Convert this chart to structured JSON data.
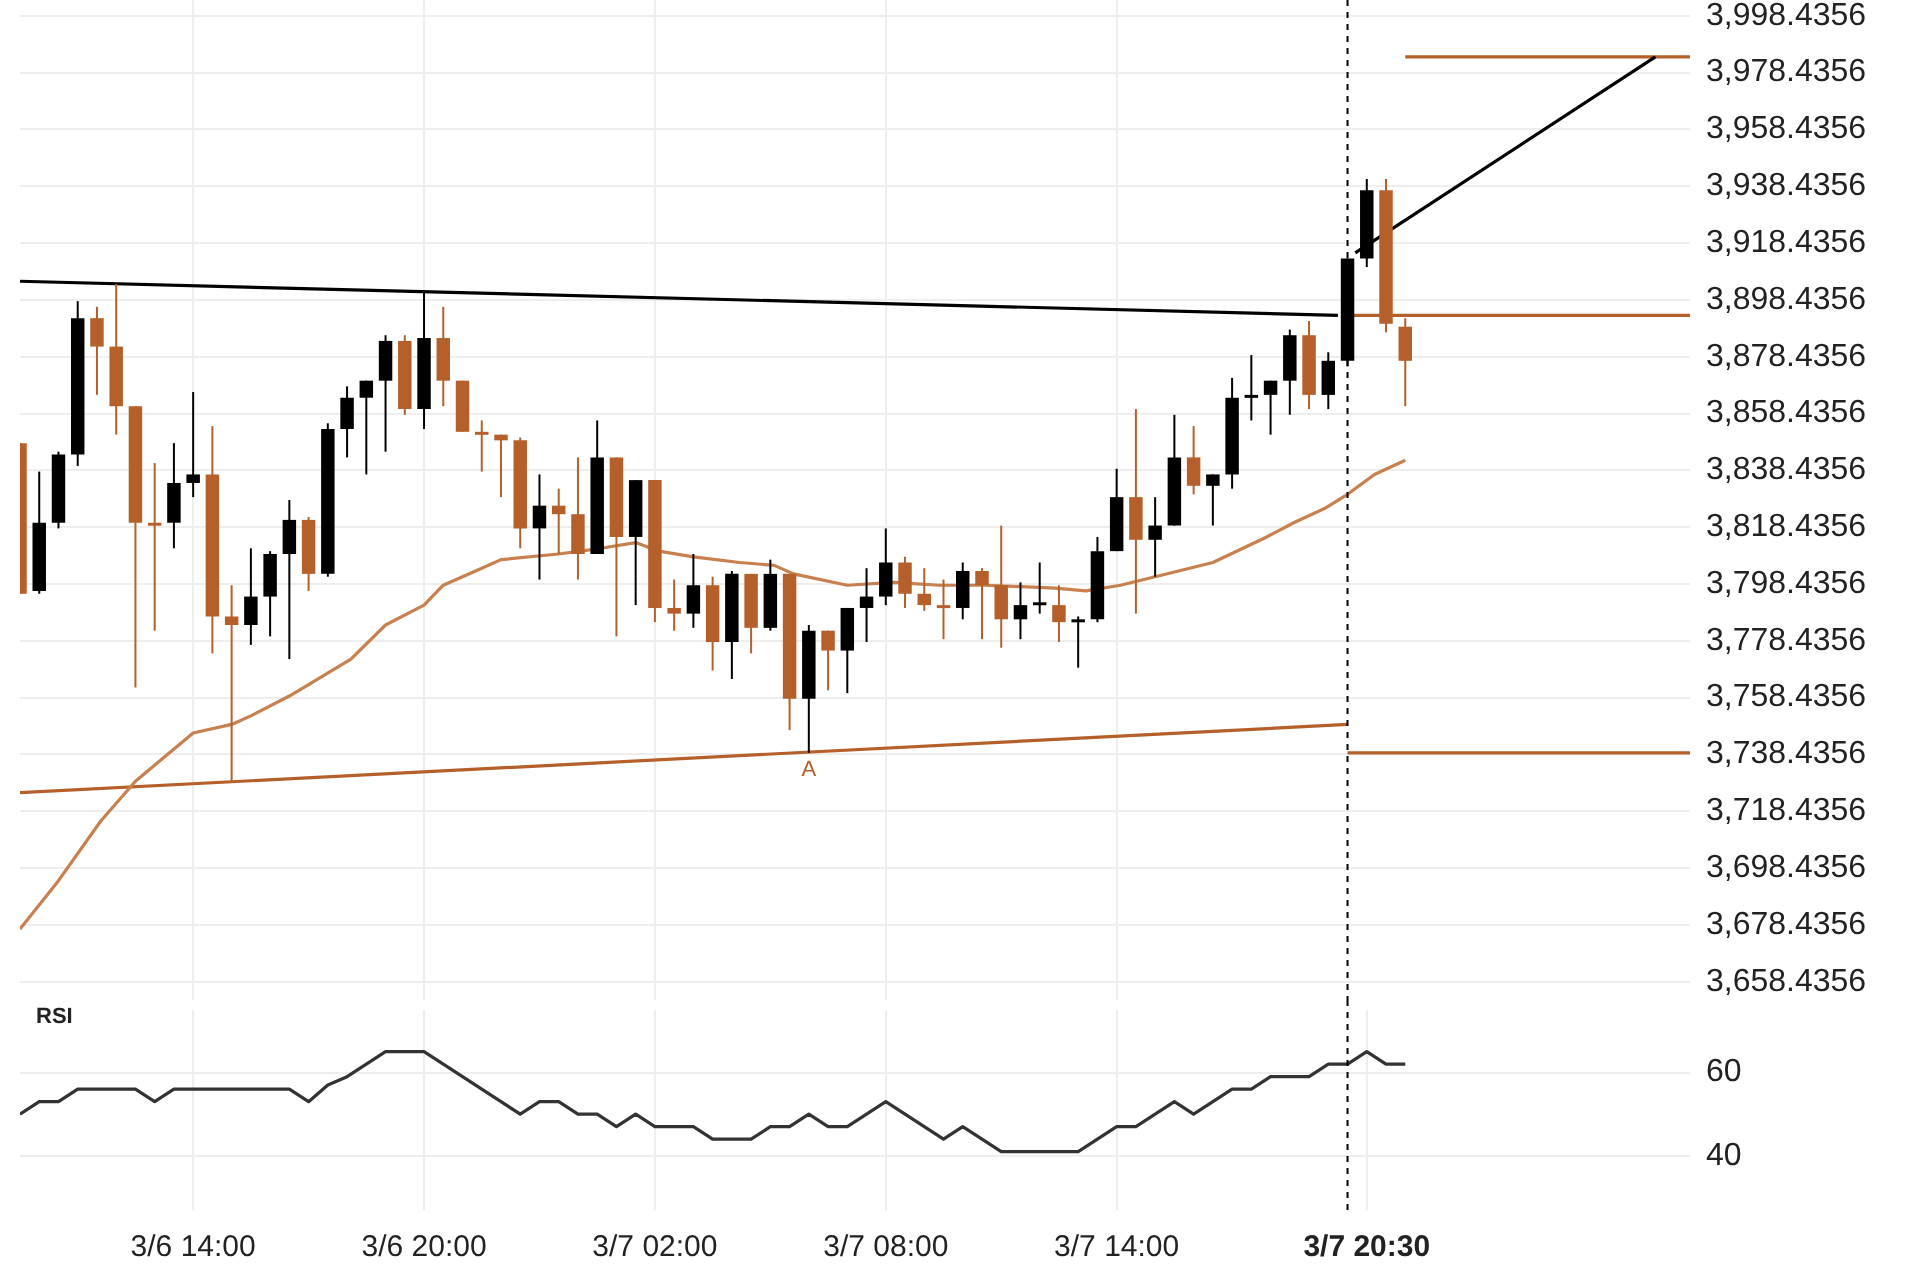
{
  "chart_data": [
    {
      "type": "candlestick",
      "x": [
        "--03-06T09:30",
        "--03-06T10:00",
        "--03-06T10:30",
        "--03-06T11:00",
        "--03-06T11:30",
        "--03-06T12:00",
        "--03-06T12:30",
        "--03-06T13:00",
        "--03-06T13:30",
        "--03-06T14:00",
        "--03-06T14:30",
        "--03-06T15:00",
        "--03-06T15:30",
        "--03-06T16:00",
        "--03-06T16:30",
        "--03-06T17:00",
        "--03-06T17:30",
        "--03-06T18:00",
        "--03-06T18:30",
        "--03-06T19:00",
        "--03-06T19:30",
        "--03-06T20:00",
        "--03-06T20:30",
        "--03-06T21:00",
        "--03-06T21:30",
        "--03-06T22:00",
        "--03-06T22:30",
        "--03-06T23:00",
        "--03-06T23:30",
        "--03-07T00:00",
        "--03-07T00:30",
        "--03-07T01:00",
        "--03-07T01:30",
        "--03-07T02:00",
        "--03-07T02:30",
        "--03-07T03:00",
        "--03-07T03:30",
        "--03-07T04:00",
        "--03-07T04:30",
        "--03-07T05:00",
        "--03-07T05:30",
        "--03-07T06:00",
        "--03-07T06:30",
        "--03-07T07:00",
        "--03-07T07:30",
        "--03-07T08:00",
        "--03-07T08:30",
        "--03-07T09:00",
        "--03-07T09:30",
        "--03-07T10:00",
        "--03-07T10:30",
        "--03-07T11:00",
        "--03-07T11:30",
        "--03-07T12:00",
        "--03-07T12:30",
        "--03-07T13:00",
        "--03-07T13:30",
        "--03-07T14:00",
        "--03-07T14:30",
        "--03-07T15:00",
        "--03-07T15:30",
        "--03-07T16:00",
        "--03-07T16:30",
        "--03-07T17:00",
        "--03-07T17:30",
        "--03-07T18:00",
        "--03-07T18:30",
        "--03-07T19:00",
        "--03-07T19:30",
        "--03-07T20:00",
        "--03-07T20:30",
        "--03-07T21:00",
        "--03-07T21:30"
      ],
      "ohlc": [
        [
          3848,
          3848,
          3795,
          3795
        ],
        [
          3796,
          3838,
          3795,
          3820
        ],
        [
          3820,
          3845,
          3818,
          3844
        ],
        [
          3844,
          3898,
          3840,
          3892
        ],
        [
          3892,
          3896,
          3865,
          3882
        ],
        [
          3882,
          3904,
          3851,
          3861
        ],
        [
          3861,
          3861,
          3762,
          3820
        ],
        [
          3820,
          3841,
          3782,
          3819
        ],
        [
          3820,
          3848,
          3811,
          3834
        ],
        [
          3834,
          3866,
          3829,
          3837
        ],
        [
          3837,
          3854,
          3774,
          3787
        ],
        [
          3787,
          3798,
          3729,
          3784
        ],
        [
          3784,
          3811,
          3777,
          3794
        ],
        [
          3794,
          3810,
          3780,
          3809
        ],
        [
          3809,
          3828,
          3772,
          3821
        ],
        [
          3821,
          3822,
          3796,
          3802
        ],
        [
          3802,
          3855,
          3801,
          3853
        ],
        [
          3853,
          3868,
          3843,
          3864
        ],
        [
          3864,
          3870,
          3837,
          3870
        ],
        [
          3870,
          3886,
          3845,
          3884
        ],
        [
          3884,
          3886,
          3858,
          3860
        ],
        [
          3860,
          3901,
          3853,
          3885
        ],
        [
          3885,
          3896,
          3861,
          3870
        ],
        [
          3870,
          3870,
          3852,
          3852
        ],
        [
          3852,
          3856,
          3838,
          3851
        ],
        [
          3851,
          3851,
          3829,
          3849
        ],
        [
          3849,
          3850,
          3811,
          3818
        ],
        [
          3818,
          3837,
          3800,
          3826
        ],
        [
          3826,
          3832,
          3809,
          3823
        ],
        [
          3823,
          3843,
          3800,
          3809
        ],
        [
          3809,
          3856,
          3809,
          3843
        ],
        [
          3843,
          3843,
          3780,
          3815
        ],
        [
          3815,
          3835,
          3791,
          3835
        ],
        [
          3835,
          3835,
          3785,
          3790
        ],
        [
          3790,
          3800,
          3782,
          3788
        ],
        [
          3788,
          3809,
          3783,
          3798
        ],
        [
          3798,
          3801,
          3768,
          3778
        ],
        [
          3778,
          3803,
          3765,
          3802
        ],
        [
          3802,
          3802,
          3774,
          3783
        ],
        [
          3783,
          3807,
          3782,
          3802
        ],
        [
          3802,
          3802,
          3747,
          3758
        ],
        [
          3758,
          3784,
          3739,
          3782
        ],
        [
          3782,
          3782,
          3761,
          3775
        ],
        [
          3775,
          3790,
          3760,
          3790
        ],
        [
          3790,
          3804,
          3778,
          3794
        ],
        [
          3794,
          3818,
          3791,
          3806
        ],
        [
          3806,
          3808,
          3790,
          3795
        ],
        [
          3795,
          3804,
          3789,
          3791
        ],
        [
          3791,
          3800,
          3779,
          3790
        ],
        [
          3790,
          3806,
          3786,
          3803
        ],
        [
          3803,
          3804,
          3779,
          3798
        ],
        [
          3798,
          3819,
          3776,
          3786
        ],
        [
          3786,
          3799,
          3779,
          3791
        ],
        [
          3791,
          3806,
          3788,
          3792
        ],
        [
          3791,
          3798,
          3778,
          3785
        ],
        [
          3785,
          3787,
          3769,
          3786
        ],
        [
          3786,
          3815,
          3785,
          3810
        ],
        [
          3810,
          3839,
          3810,
          3829
        ],
        [
          3829,
          3860,
          3788,
          3814
        ],
        [
          3814,
          3829,
          3801,
          3819
        ],
        [
          3819,
          3858,
          3819,
          3843
        ],
        [
          3843,
          3854,
          3830,
          3833
        ],
        [
          3833,
          3837,
          3819,
          3837
        ],
        [
          3837,
          3871,
          3832,
          3864
        ],
        [
          3864,
          3879,
          3856,
          3865
        ],
        [
          3865,
          3870,
          3851,
          3870
        ],
        [
          3870,
          3888,
          3858,
          3886
        ],
        [
          3886,
          3891,
          3860,
          3865
        ],
        [
          3865,
          3880,
          3860,
          3877
        ],
        [
          3877,
          3913,
          3875,
          3913
        ],
        [
          3913,
          3941,
          3910,
          3937
        ],
        [
          3937,
          3941,
          3887,
          3890
        ],
        [
          3889,
          3892,
          3861,
          3877
        ]
      ],
      "colors": [
        "#b5602a",
        "#000000",
        "#000000",
        "#000000",
        "#b5602a",
        "#b5602a",
        "#b5602a",
        "#b5602a",
        "#000000",
        "#000000",
        "#b5602a",
        "#b5602a",
        "#000000",
        "#000000",
        "#000000",
        "#b5602a",
        "#000000",
        "#000000",
        "#000000",
        "#000000",
        "#b5602a",
        "#000000",
        "#b5602a",
        "#b5602a",
        "#b5602a",
        "#b5602a",
        "#b5602a",
        "#000000",
        "#b5602a",
        "#b5602a",
        "#000000",
        "#b5602a",
        "#000000",
        "#b5602a",
        "#b5602a",
        "#000000",
        "#b5602a",
        "#000000",
        "#b5602a",
        "#000000",
        "#b5602a",
        "#000000",
        "#b5602a",
        "#000000",
        "#000000",
        "#000000",
        "#b5602a",
        "#b5602a",
        "#b5602a",
        "#000000",
        "#b5602a",
        "#b5602a",
        "#000000",
        "#000000",
        "#b5602a",
        "#000000",
        "#000000",
        "#000000",
        "#b5602a",
        "#000000",
        "#000000",
        "#b5602a",
        "#000000",
        "#000000",
        "#000000",
        "#000000",
        "#000000",
        "#b5602a",
        "#000000",
        "#000000",
        "#000000",
        "#b5602a",
        "#b5602a"
      ],
      "series": [
        {
          "type": "line",
          "color": "#c8804f",
          "x": [
            "--03-06T09:30",
            "--03-06T10:30",
            "--03-06T11:36",
            "--03-06T12:30",
            "--03-06T14:00",
            "--03-06T15:00",
            "--03-06T15:30",
            "--03-06T16:30",
            "--03-06T17:00",
            "--03-06T18:06",
            "--03-06T19:00",
            "--03-06T20:00",
            "--03-06T20:30",
            "--03-06T21:30",
            "--03-06T22:00",
            "--03-06T23:30",
            "--03-07T00:36",
            "--03-07T01:30",
            "--03-07T02:06",
            "--03-07T03:00",
            "--03-07T04:12",
            "--03-07T05:06",
            "--03-07T05:36",
            "--03-07T07:00",
            "--03-07T08:12",
            "--03-07T09:24",
            "--03-07T10:36",
            "--03-07T12:24",
            "--03-07T13:12",
            "--03-07T14:06",
            "--03-07T15:00",
            "--03-07T16:30",
            "--03-07T17:54",
            "--03-07T18:36",
            "--03-07T19:24",
            "--03-07T20:00",
            "--03-07T20:42",
            "--03-07T21:30"
          ],
          "values": [
            3677,
            3694,
            3715,
            3729,
            3746,
            3749,
            3752,
            3759,
            3763,
            3772,
            3784,
            3791,
            3798,
            3804,
            3807,
            3809,
            3811,
            3813,
            3810,
            3808,
            3806,
            3805,
            3802,
            3798,
            3799,
            3798,
            3798,
            3797,
            3796,
            3798,
            3801,
            3806,
            3815,
            3820,
            3825,
            3830,
            3837,
            3842
          ]
        },
        {
          "type": "line",
          "color": "#000000",
          "x": [
            "--03-06T09:30",
            "--03-07T19:45"
          ],
          "values": [
            3905,
            3893
          ]
        },
        {
          "type": "line",
          "color": "#b5602a",
          "x": [
            "--03-06T09:30",
            "--03-07T20:00"
          ],
          "values": [
            3725,
            3749
          ]
        },
        {
          "type": "line",
          "color": "#b5602a",
          "x": [
            "--03-07T20:00",
            "--03-08T04:54"
          ],
          "values": [
            3739,
            3739
          ]
        },
        {
          "type": "line",
          "color": "#b5602a",
          "x": [
            "--03-07T20:00",
            "--03-08T04:54"
          ],
          "values": [
            3893,
            3893
          ]
        },
        {
          "type": "line",
          "color": "#000000",
          "x": [
            "--03-07T20:12",
            "--03-08T04:00"
          ],
          "values": [
            3915,
            3984
          ]
        },
        {
          "type": "line",
          "color": "#b5602a",
          "x": [
            "--03-07T21:30",
            "--03-08T04:54"
          ],
          "values": [
            3984,
            3984
          ]
        }
      ],
      "xlim": [
        "--03-06T09:30",
        "--03-08T04:54"
      ],
      "ylim": [
        3652,
        4004
      ],
      "xticks": [
        {
          "value": "--03-06T14:00",
          "label": null
        },
        {
          "value": "--03-06T20:00",
          "label": null
        },
        {
          "value": "--03-07T02:00",
          "label": null
        },
        {
          "value": "--03-07T08:00",
          "label": null
        },
        {
          "value": "--03-07T14:00",
          "label": null
        }
      ],
      "yticks": [
        {
          "value": 3658.4356,
          "label": "3,658.4356"
        },
        {
          "value": 3678.4356,
          "label": "3,678.4356"
        },
        {
          "value": 3698.4356,
          "label": "3,698.4356"
        },
        {
          "value": 3718.4356,
          "label": "3,718.4356"
        },
        {
          "value": 3738.4356,
          "label": "3,738.4356"
        },
        {
          "value": 3758.4356,
          "label": "3,758.4356"
        },
        {
          "value": 3778.4356,
          "label": "3,778.4356"
        },
        {
          "value": 3798.4356,
          "label": "3,798.4356"
        },
        {
          "value": 3818.4356,
          "label": "3,818.4356"
        },
        {
          "value": 3838.4356,
          "label": "3,838.4356"
        },
        {
          "value": 3858.4356,
          "label": "3,858.4356"
        },
        {
          "value": 3878.4356,
          "label": "3,878.4356"
        },
        {
          "value": 3898.4356,
          "label": "3,898.4356"
        },
        {
          "value": 3918.4356,
          "label": "3,918.4356"
        },
        {
          "value": 3938.4356,
          "label": "3,938.4356"
        },
        {
          "value": 3958.4356,
          "label": "3,958.4356"
        },
        {
          "value": 3978.4356,
          "label": "3,978.4356"
        },
        {
          "value": 3998.4356,
          "label": "3,998.4356"
        }
      ],
      "tick_labels": "y",
      "grid": true,
      "marker": "none",
      "ref_lines": [
        {
          "axis": "x",
          "value": "--03-07T20:00",
          "color": "#000000",
          "line_style": "dashed"
        }
      ],
      "annotations": [
        {
          "text": "A",
          "x": "--03-07T06:00",
          "y": 3739
        }
      ]
    },
    {
      "type": "line",
      "title": "RSI",
      "color": "#333333",
      "x": [
        "--03-06T09:30",
        "--03-06T10:00",
        "--03-06T10:30",
        "--03-06T11:00",
        "--03-06T11:30",
        "--03-06T12:00",
        "--03-06T12:30",
        "--03-06T13:00",
        "--03-06T13:30",
        "--03-06T14:00",
        "--03-06T14:30",
        "--03-06T15:00",
        "--03-06T15:30",
        "--03-06T16:00",
        "--03-06T16:30",
        "--03-06T17:00",
        "--03-06T17:30",
        "--03-06T18:00",
        "--03-06T18:30",
        "--03-06T19:00",
        "--03-06T19:30",
        "--03-06T20:00",
        "--03-06T20:30",
        "--03-06T21:00",
        "--03-06T21:30",
        "--03-06T22:00",
        "--03-06T22:30",
        "--03-06T23:00",
        "--03-06T23:30",
        "--03-07T00:00",
        "--03-07T00:30",
        "--03-07T01:00",
        "--03-07T01:30",
        "--03-07T02:00",
        "--03-07T02:30",
        "--03-07T03:00",
        "--03-07T03:30",
        "--03-07T04:00",
        "--03-07T04:30",
        "--03-07T05:00",
        "--03-07T05:30",
        "--03-07T06:00",
        "--03-07T06:30",
        "--03-07T07:00",
        "--03-07T07:30",
        "--03-07T08:00",
        "--03-07T08:30",
        "--03-07T09:00",
        "--03-07T09:30",
        "--03-07T10:00",
        "--03-07T10:30",
        "--03-07T11:00",
        "--03-07T11:30",
        "--03-07T12:00",
        "--03-07T12:30",
        "--03-07T13:00",
        "--03-07T13:30",
        "--03-07T14:00",
        "--03-07T14:30",
        "--03-07T15:00",
        "--03-07T15:30",
        "--03-07T16:00",
        "--03-07T16:30",
        "--03-07T17:00",
        "--03-07T17:30",
        "--03-07T18:00",
        "--03-07T18:30",
        "--03-07T19:00",
        "--03-07T19:30",
        "--03-07T20:00",
        "--03-07T20:30",
        "--03-07T21:00",
        "--03-07T21:30"
      ],
      "values": [
        50,
        53,
        53,
        56,
        56,
        56,
        56,
        53,
        56,
        56,
        56,
        56,
        56,
        56,
        56,
        53,
        57,
        59,
        62,
        65,
        65,
        65,
        62,
        59,
        56,
        53,
        50,
        53,
        53,
        50,
        50,
        47,
        50,
        47,
        47,
        47,
        44,
        44,
        44,
        47,
        47,
        50,
        47,
        47,
        50,
        53,
        50,
        47,
        44,
        47,
        44,
        41,
        41,
        41,
        41,
        41,
        44,
        47,
        47,
        50,
        53,
        50,
        53,
        56,
        56,
        59,
        59,
        59,
        62,
        62,
        65,
        62,
        62
      ],
      "xlim": [
        "--03-06T09:30",
        "--03-08T04:54"
      ],
      "ylim": [
        27,
        75
      ],
      "xticks": [
        {
          "value": "--03-06T14:00",
          "label": "3/6 14:00"
        },
        {
          "value": "--03-06T20:00",
          "label": "3/6 20:00"
        },
        {
          "value": "--03-07T02:00",
          "label": "3/7 02:00"
        },
        {
          "value": "--03-07T08:00",
          "label": "3/7 08:00"
        },
        {
          "value": "--03-07T14:00",
          "label": "3/7 14:00"
        },
        {
          "value": "--03-07T20:30",
          "label": "3/7 20:30"
        }
      ],
      "yticks": [
        40,
        60
      ],
      "grid": true,
      "marker": "none",
      "ref_lines": [
        {
          "axis": "x",
          "value": "--03-07T20:00",
          "color": "#000000",
          "line_style": "dashed"
        }
      ]
    }
  ]
}
